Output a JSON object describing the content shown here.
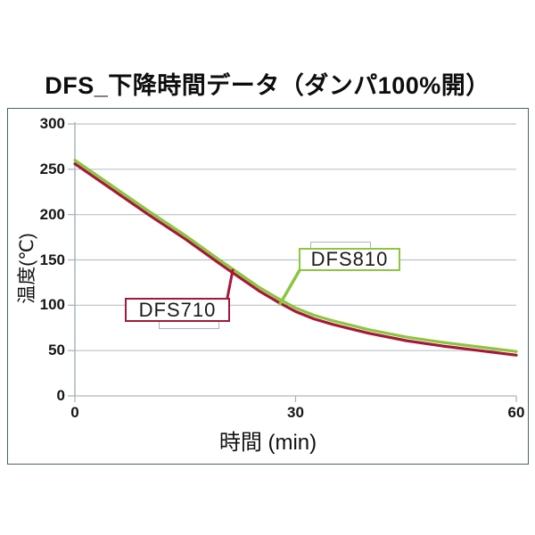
{
  "title": "DFS_下降時間データ（ダンパ100%開）",
  "colors": {
    "frame": "#46656F",
    "grid": "#BDC3C7",
    "axis": "#A3B1B8",
    "bracket": "#AEB4B8",
    "dfs710": "#A51937",
    "dfs810": "#8CC63F"
  },
  "chart_data": {
    "type": "line",
    "title": "DFS_下降時間データ（ダンパ100%開）",
    "xlabel": "時間 (min)",
    "ylabel": "温度(℃)",
    "xlim": [
      0,
      60
    ],
    "ylim": [
      0,
      300
    ],
    "x_ticks": [
      0,
      30,
      60
    ],
    "y_ticks": [
      0,
      50,
      100,
      150,
      200,
      250,
      300
    ],
    "grid": true,
    "legend_position": "inline-callouts",
    "x": [
      0,
      5,
      10,
      15,
      20,
      25,
      27.5,
      30,
      32.5,
      35,
      37.5,
      40,
      45,
      50,
      55,
      60
    ],
    "series": [
      {
        "name": "DFS710",
        "color": "#A51937",
        "values": [
          256,
          228,
          200,
          173,
          144,
          116,
          104,
          93,
          85,
          79,
          74,
          69,
          61,
          55,
          50,
          45
        ]
      },
      {
        "name": "DFS810",
        "color": "#8CC63F",
        "values": [
          260,
          232,
          204,
          177,
          148,
          120,
          108,
          97,
          89,
          83,
          78,
          73,
          65,
          59,
          54,
          49
        ]
      }
    ]
  }
}
